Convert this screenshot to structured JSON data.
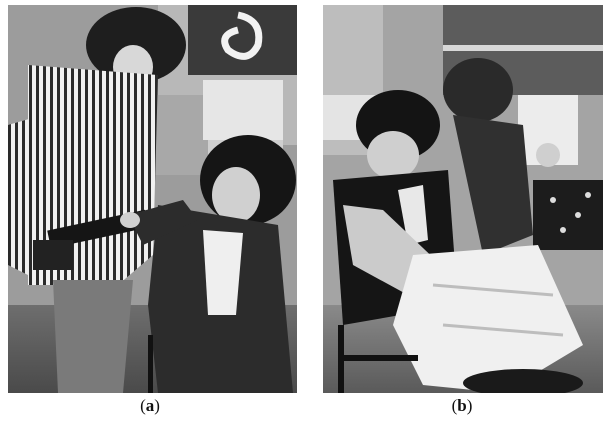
{
  "figure": {
    "panels": [
      {
        "id": "a",
        "caption_open": "(",
        "caption_letter": "a",
        "caption_close": ")"
      },
      {
        "id": "b",
        "caption_open": "(",
        "caption_letter": "b",
        "caption_close": ")"
      }
    ]
  }
}
